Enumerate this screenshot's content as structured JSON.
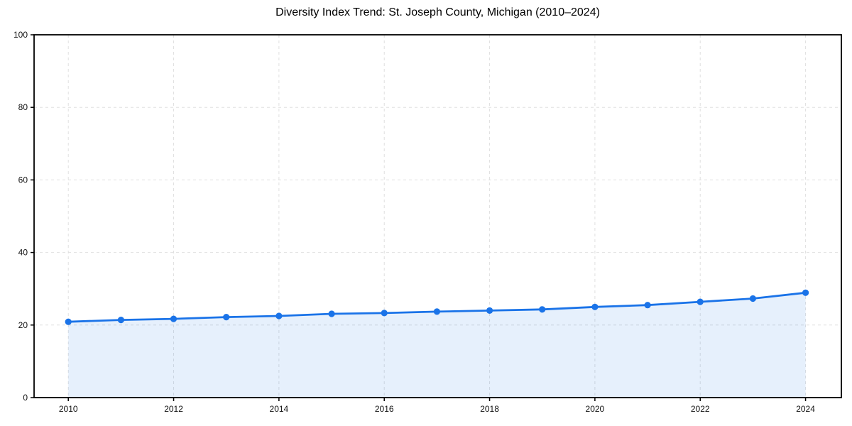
{
  "chart_data": {
    "type": "line",
    "title": "Diversity Index Trend: St. Joseph County, Michigan (2010–2024)",
    "x": [
      2010,
      2011,
      2012,
      2013,
      2014,
      2015,
      2016,
      2017,
      2018,
      2019,
      2020,
      2021,
      2022,
      2023,
      2024
    ],
    "series": [
      {
        "name": "Diversity Index",
        "values": [
          20.9,
          21.4,
          21.7,
          22.2,
          22.5,
          23.1,
          23.3,
          23.7,
          24.0,
          24.3,
          25.0,
          25.5,
          26.4,
          27.3,
          28.9
        ]
      }
    ],
    "xlabel": "",
    "ylabel": "",
    "xticks": [
      2010,
      2012,
      2014,
      2016,
      2018,
      2020,
      2022,
      2024
    ],
    "yticks": [
      0,
      20,
      40,
      60,
      80,
      100
    ],
    "xlim": [
      2009.35,
      2024.68
    ],
    "ylim": [
      0,
      100
    ],
    "grid": "dashed",
    "legend_position": "none",
    "marker": "circle",
    "colors": {
      "line": "#1a73e8",
      "marker": "#1a73e8",
      "area_fill": "#1a73e8",
      "area_opacity": 0.11,
      "grid": "#e0e0e0",
      "spine": "#000000",
      "tick": "#000000",
      "text": "#111111",
      "background": "#ffffff"
    }
  }
}
